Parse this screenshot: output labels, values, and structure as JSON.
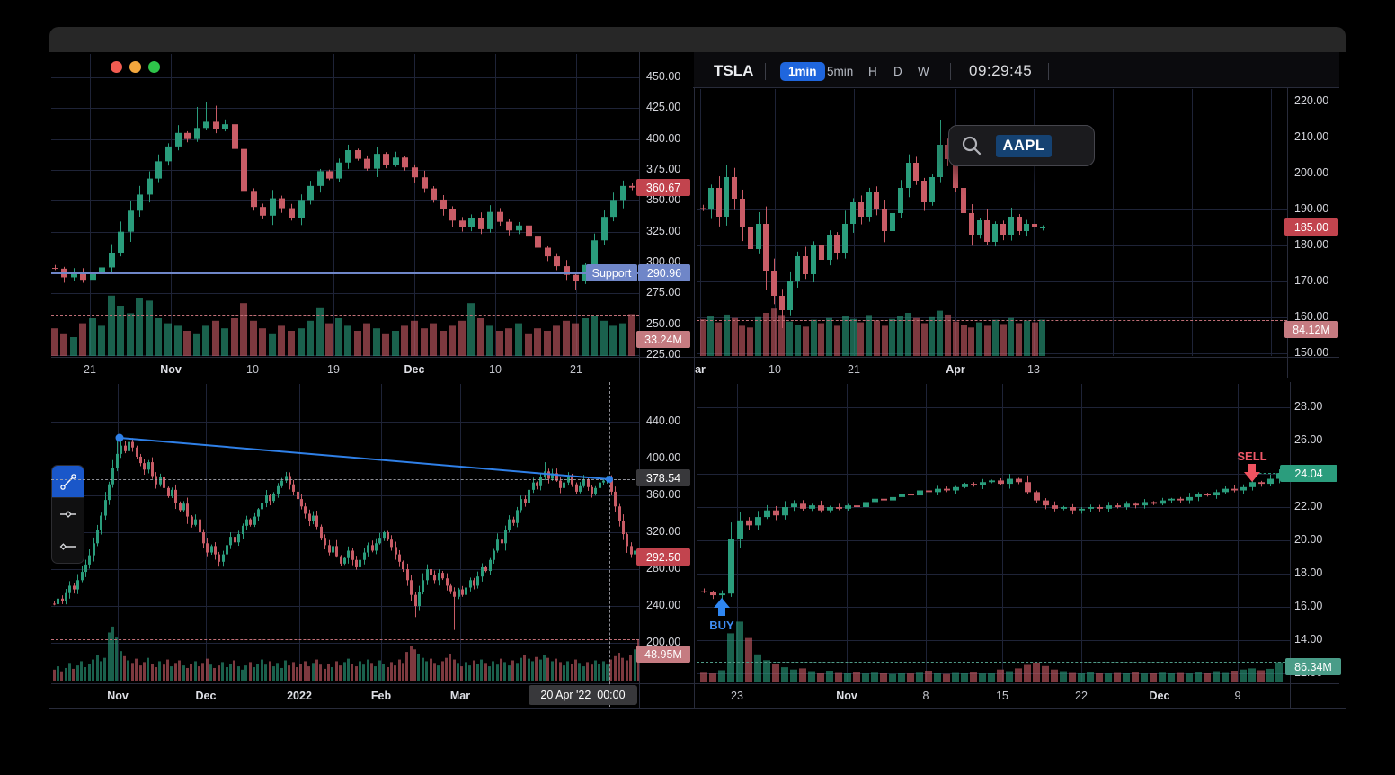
{
  "window": {
    "controls": [
      "close",
      "minimize",
      "zoom"
    ]
  },
  "header": {
    "symbol": "TSLA",
    "timeframes": [
      "1min",
      "5min",
      "H",
      "D",
      "W"
    ],
    "active_timeframe": "1min",
    "clock": "09:29:45"
  },
  "search": {
    "value": "AAPL"
  },
  "drawing_toolbar": {
    "active": "trendline",
    "tools": [
      "trendline",
      "horizontal-line",
      "ray"
    ]
  },
  "panels": {
    "top_left": {
      "price_badge": "360.67",
      "support": {
        "label": "Support",
        "value": "290.96"
      },
      "volume_badge": "33.24M"
    },
    "top_right": {
      "price_badge": "185.00",
      "volume_badge": "84.12M"
    },
    "bottom_left": {
      "crosshair": {
        "price": "378.54",
        "time": "20 Apr '22  00:00"
      },
      "price_badge": "292.50",
      "volume_badge": "48.95M"
    },
    "bottom_right": {
      "price_badge": "24.04",
      "volume_badge": "86.34M",
      "buy_label": "BUY",
      "sell_label": "SELL"
    }
  },
  "colors": {
    "up": "#2a9d7c",
    "down": "#c95c66",
    "vol_up": "rgba(42,157,124,0.62)",
    "vol_down": "rgba(201,92,102,0.62)",
    "grid": "#1e2337",
    "accent_blue": "#2f80e8",
    "buy_blue": "#3f8df2",
    "sell_red": "#ef5868",
    "badge_red": "#c2444e",
    "badge_pink": "#c57b81",
    "badge_blue": "#6f86c8",
    "badge_gray": "#38383b",
    "badge_green": "#2b9d7d",
    "badge_teal": "#4a9c88"
  },
  "chart_data": [
    {
      "id": "top_left",
      "type": "candlestick",
      "ylim": [
        225,
        455
      ],
      "y_ticks": [
        "450.00",
        "425.00",
        "400.00",
        "375.00",
        "350.00",
        "325.00",
        "300.00",
        "275.00",
        "250.00",
        "225.00"
      ],
      "x_ticks": [
        {
          "label": "21",
          "x": 100,
          "bold": false
        },
        {
          "label": "Nov",
          "x": 190,
          "bold": true
        },
        {
          "label": "10",
          "x": 281,
          "bold": false
        },
        {
          "label": "19",
          "x": 371,
          "bold": false
        },
        {
          "label": "Dec",
          "x": 461,
          "bold": true
        },
        {
          "label": "10",
          "x": 551,
          "bold": false
        },
        {
          "label": "21",
          "x": 641,
          "bold": false
        }
      ],
      "closes": [
        295,
        288,
        292,
        286,
        291,
        296,
        308,
        325,
        342,
        355,
        368,
        382,
        394,
        405,
        400,
        409,
        414,
        408,
        412,
        392,
        358,
        345,
        338,
        352,
        344,
        336,
        350,
        362,
        374,
        368,
        381,
        391,
        384,
        376,
        388,
        379,
        385,
        377,
        369,
        360,
        351,
        343,
        334,
        329,
        336,
        327,
        341,
        333,
        326,
        330,
        321,
        312,
        305,
        297,
        290,
        285,
        298,
        318,
        337,
        350,
        362,
        360.67
      ],
      "volumes": [
        22,
        18,
        15,
        26,
        30,
        24,
        48,
        40,
        34,
        46,
        44,
        30,
        26,
        24,
        20,
        18,
        24,
        28,
        22,
        30,
        42,
        28,
        22,
        18,
        24,
        20,
        22,
        28,
        38,
        26,
        30,
        24,
        20,
        26,
        22,
        18,
        20,
        24,
        28,
        22,
        26,
        20,
        24,
        28,
        42,
        30,
        24,
        20,
        22,
        26,
        18,
        22,
        20,
        24,
        28,
        26,
        30,
        32,
        28,
        24,
        26,
        33.24
      ],
      "wick_overrides": {
        "15": {
          "high": 426
        },
        "16": {
          "high": 430
        },
        "17": {
          "high": 427
        },
        "5": {
          "low": 279
        },
        "55": {
          "low": 278
        }
      },
      "last_price": 360.67,
      "support_price": 290.96,
      "last_volume_label": "33.24M"
    },
    {
      "id": "top_right",
      "type": "candlestick",
      "ylim": [
        150,
        220
      ],
      "y_ticks": [
        "220.00",
        "210.00",
        "200.00",
        "190.00",
        "180.00",
        "170.00",
        "160.00",
        "150.00"
      ],
      "x_ticks": [
        {
          "label": "ar",
          "x": 779,
          "bold": true
        },
        {
          "label": "10",
          "x": 862,
          "bold": false
        },
        {
          "label": "21",
          "x": 950,
          "bold": false
        },
        {
          "label": "Apr",
          "x": 1063,
          "bold": true
        },
        {
          "label": "13",
          "x": 1150,
          "bold": false
        }
      ],
      "closes": [
        190,
        196,
        188,
        199,
        193,
        185,
        179,
        186,
        173,
        166,
        162,
        170,
        177,
        172,
        180,
        176,
        183,
        178,
        186,
        192,
        188,
        195,
        190,
        184,
        189,
        196,
        203,
        198,
        192,
        199,
        208,
        204,
        196,
        189,
        183,
        187,
        181,
        186,
        183,
        188,
        184,
        186,
        185,
        185
      ],
      "volumes": [
        85,
        92,
        78,
        96,
        88,
        70,
        66,
        90,
        100,
        110,
        95,
        80,
        72,
        68,
        84,
        76,
        88,
        70,
        92,
        86,
        78,
        95,
        82,
        70,
        86,
        92,
        100,
        88,
        76,
        90,
        105,
        96,
        80,
        72,
        66,
        78,
        70,
        84,
        74,
        88,
        76,
        82,
        78,
        84.12
      ],
      "wick_overrides": {
        "10": {
          "low": 157
        },
        "30": {
          "high": 215
        }
      },
      "last_price": 185.0,
      "last_volume_label": "84.12M"
    },
    {
      "id": "bottom_left",
      "type": "candlestick",
      "ylim": [
        200,
        460
      ],
      "y_ticks": [
        "440.00",
        "400.00",
        "360.00",
        "320.00",
        "280.00",
        "240.00",
        "200.00"
      ],
      "x_ticks": [
        {
          "label": "Nov",
          "x": 131,
          "bold": true
        },
        {
          "label": "Dec",
          "x": 229,
          "bold": true
        },
        {
          "label": "2022",
          "x": 333,
          "bold": true
        },
        {
          "label": "Feb",
          "x": 424,
          "bold": true
        },
        {
          "label": "Mar",
          "x": 512,
          "bold": true
        }
      ],
      "closes": [
        242,
        248,
        245,
        254,
        262,
        258,
        268,
        277,
        285,
        295,
        308,
        322,
        338,
        355,
        372,
        390,
        405,
        414,
        408,
        418,
        412,
        402,
        395,
        388,
        396,
        381,
        372,
        380,
        368,
        359,
        366,
        352,
        344,
        351,
        337,
        328,
        334,
        320,
        308,
        298,
        305,
        296,
        288,
        296,
        306,
        315,
        309,
        318,
        327,
        334,
        328,
        337,
        345,
        352,
        360,
        354,
        362,
        370,
        376,
        381,
        372,
        364,
        356,
        348,
        340,
        332,
        338,
        326,
        314,
        306,
        298,
        305,
        294,
        286,
        292,
        300,
        290,
        282,
        290,
        298,
        306,
        300,
        308,
        314,
        320,
        312,
        304,
        296,
        288,
        280,
        268,
        252,
        240,
        255,
        268,
        280,
        274,
        268,
        276,
        270,
        262,
        256,
        250,
        258,
        252,
        260,
        268,
        262,
        272,
        282,
        278,
        290,
        300,
        312,
        308,
        322,
        334,
        330,
        344,
        356,
        352,
        366,
        374,
        370,
        380,
        386,
        378,
        384,
        376,
        368,
        374,
        380,
        372,
        364,
        370,
        377,
        369,
        362,
        368,
        374,
        376,
        378,
        364,
        348,
        332,
        318,
        305,
        296,
        300,
        292.5
      ],
      "volumes": [
        14,
        18,
        12,
        16,
        22,
        15,
        19,
        24,
        17,
        21,
        26,
        31,
        24,
        28,
        58,
        65,
        52,
        36,
        30,
        25,
        22,
        27,
        19,
        23,
        28,
        21,
        17,
        24,
        20,
        26,
        18,
        22,
        25,
        19,
        16,
        21,
        24,
        18,
        22,
        27,
        20,
        16,
        19,
        23,
        17,
        21,
        25,
        18,
        14,
        19,
        23,
        17,
        21,
        26,
        20,
        24,
        18,
        22,
        16,
        25,
        19,
        23,
        17,
        21,
        24,
        18,
        22,
        26,
        20,
        15,
        21,
        17,
        24,
        19,
        23,
        27,
        21,
        18,
        24,
        20,
        26,
        22,
        18,
        25,
        21,
        17,
        23,
        19,
        26,
        22,
        35,
        42,
        38,
        33,
        28,
        24,
        27,
        22,
        19,
        24,
        28,
        33,
        26,
        22,
        18,
        23,
        19,
        25,
        21,
        26,
        22,
        18,
        24,
        20,
        27,
        23,
        19,
        25,
        22,
        28,
        31,
        27,
        24,
        29,
        26,
        31,
        28,
        24,
        27,
        23,
        19,
        24,
        21,
        26,
        22,
        18,
        23,
        20,
        25,
        21,
        24,
        20,
        26,
        30,
        34,
        28,
        25,
        31,
        38,
        48.95
      ],
      "wick_overrides": {
        "16": {
          "high": 421
        },
        "17": {
          "high": 425
        },
        "92": {
          "low": 228
        },
        "102": {
          "low": 214
        },
        "125": {
          "high": 396
        }
      },
      "last_price": 292.5,
      "last_volume_label": "48.95M",
      "annotations": {
        "trendline": {
          "from_price": 422,
          "to_price": 378.5
        },
        "crosshair_price": 378.54
      }
    },
    {
      "id": "bottom_right",
      "type": "candlestick",
      "ylim": [
        12,
        29
      ],
      "y_ticks": [
        "28.00",
        "26.00",
        "24.00",
        "22.00",
        "20.00",
        "18.00",
        "16.00",
        "14.00",
        "12.00"
      ],
      "x_ticks": [
        {
          "label": "23",
          "x": 820,
          "bold": false
        },
        {
          "label": "Nov",
          "x": 942,
          "bold": true
        },
        {
          "label": "8",
          "x": 1030,
          "bold": false
        },
        {
          "label": "15",
          "x": 1115,
          "bold": false
        },
        {
          "label": "22",
          "x": 1203,
          "bold": false
        },
        {
          "label": "Dec",
          "x": 1290,
          "bold": true
        },
        {
          "label": "9",
          "x": 1377,
          "bold": false
        }
      ],
      "closes": [
        16.9,
        16.7,
        16.8,
        20.1,
        21.2,
        20.9,
        21.4,
        21.8,
        21.5,
        22.0,
        22.2,
        21.9,
        22.1,
        21.8,
        22.0,
        21.9,
        22.1,
        22.0,
        22.3,
        22.5,
        22.4,
        22.6,
        22.8,
        22.7,
        23.0,
        22.9,
        23.1,
        23.0,
        23.2,
        23.4,
        23.3,
        23.5,
        23.6,
        23.4,
        23.7,
        23.5,
        22.9,
        22.4,
        22.1,
        21.9,
        22.0,
        21.8,
        21.9,
        22.0,
        21.9,
        22.1,
        22.0,
        22.2,
        22.1,
        22.3,
        22.2,
        22.4,
        22.5,
        22.4,
        22.6,
        22.8,
        22.7,
        22.9,
        23.1,
        23.0,
        23.2,
        23.5,
        23.4,
        23.7,
        24.04
      ],
      "volumes": [
        45,
        38,
        52,
        210,
        260,
        190,
        120,
        95,
        80,
        65,
        55,
        60,
        48,
        42,
        50,
        44,
        40,
        46,
        38,
        45,
        40,
        36,
        42,
        38,
        45,
        50,
        40,
        36,
        44,
        40,
        46,
        38,
        42,
        55,
        48,
        60,
        75,
        85,
        70,
        55,
        48,
        44,
        40,
        46,
        42,
        38,
        44,
        40,
        46,
        38,
        42,
        45,
        40,
        44,
        38,
        46,
        42,
        48,
        44,
        50,
        55,
        60,
        52,
        58,
        86.34
      ],
      "wick_overrides": {
        "2": {
          "low": 16.2
        },
        "3": {
          "low": 16.6
        },
        "34": {
          "high": 24.0
        }
      },
      "last_price": 24.04,
      "last_volume_label": "86.34M",
      "markers": {
        "buy_index": 2,
        "sell_index": 61
      }
    }
  ]
}
